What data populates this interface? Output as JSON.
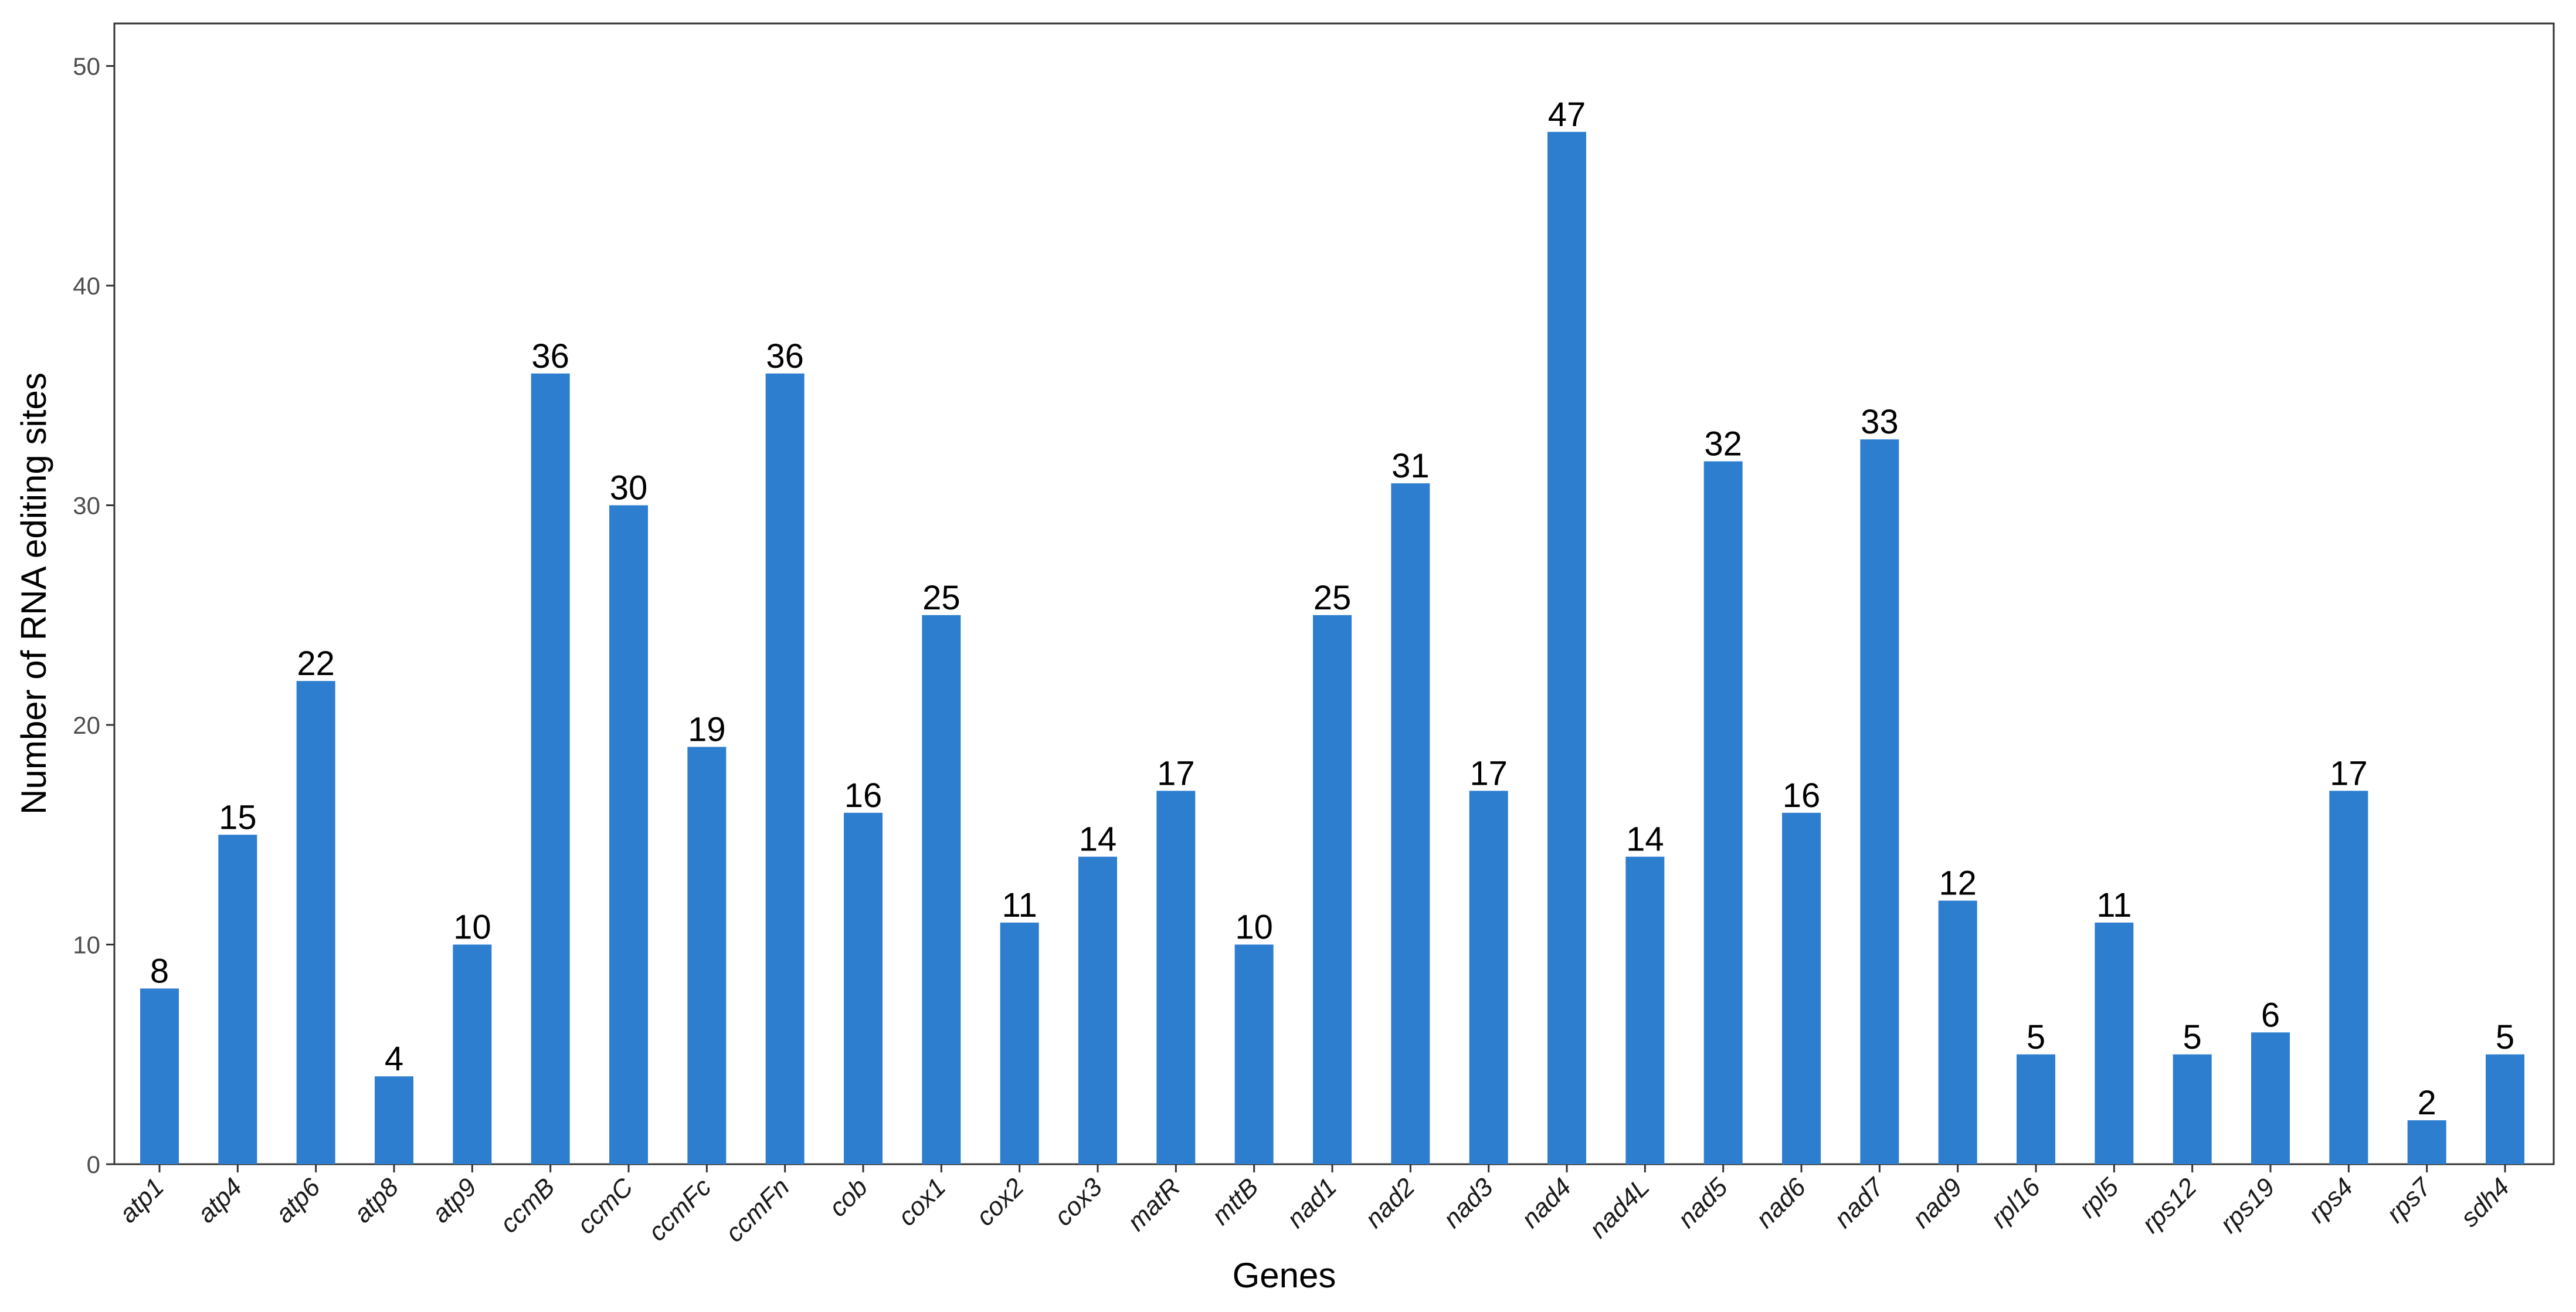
{
  "chart_data": {
    "type": "bar",
    "categories": [
      "atp1",
      "atp4",
      "atp6",
      "atp8",
      "atp9",
      "ccmB",
      "ccmC",
      "ccmFc",
      "ccmFn",
      "cob",
      "cox1",
      "cox2",
      "cox3",
      "matR",
      "mttB",
      "nad1",
      "nad2",
      "nad3",
      "nad4",
      "nad4L",
      "nad5",
      "nad6",
      "nad7",
      "nad9",
      "rpl16",
      "rpl5",
      "rps12",
      "rps19",
      "rps4",
      "rps7",
      "sdh4"
    ],
    "values": [
      8,
      15,
      22,
      4,
      10,
      36,
      30,
      19,
      36,
      16,
      25,
      11,
      14,
      17,
      10,
      25,
      31,
      17,
      47,
      14,
      32,
      16,
      33,
      12,
      5,
      11,
      5,
      6,
      17,
      2,
      5
    ],
    "title": "",
    "xlabel": "Genes",
    "ylabel": "Number of RNA editing sites",
    "ylim": [
      0,
      52
    ],
    "yticks": [
      0,
      10,
      20,
      30,
      40,
      50
    ],
    "grid": false,
    "legend": "none",
    "bar_color": "#2e7ecf",
    "data_labels": true
  }
}
